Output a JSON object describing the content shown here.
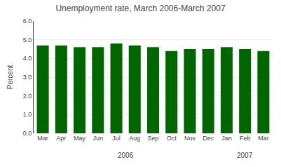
{
  "chart_data": {
    "type": "bar",
    "title": "Unemployment rate, March 2006-March 2007",
    "ylabel": "Percent",
    "categories": [
      "Mar",
      "Apr",
      "May",
      "Jun",
      "Jul",
      "Aug",
      "Sep",
      "Oct",
      "Nov",
      "Dec",
      "Jan",
      "Feb",
      "Mar"
    ],
    "values": [
      4.7,
      4.7,
      4.6,
      4.6,
      4.8,
      4.7,
      4.6,
      4.4,
      4.5,
      4.5,
      4.6,
      4.5,
      4.4
    ],
    "color": "#006600",
    "ylim": [
      0.0,
      6.0
    ],
    "yticks": [
      {
        "value": 0.0,
        "label": "0.0"
      },
      {
        "value": 1.0,
        "label": "1.0"
      },
      {
        "value": 2.0,
        "label": "2.0"
      },
      {
        "value": 3.0,
        "label": "3.0"
      },
      {
        "value": 4.0,
        "label": "4.0"
      },
      {
        "value": 5.0,
        "label": "5.0"
      },
      {
        "value": 6.0,
        "label": "6.0"
      }
    ],
    "grid": true,
    "annotations": [
      {
        "text": "2006",
        "x": 4.5
      },
      {
        "text": "2007",
        "x": 11.0
      }
    ]
  }
}
